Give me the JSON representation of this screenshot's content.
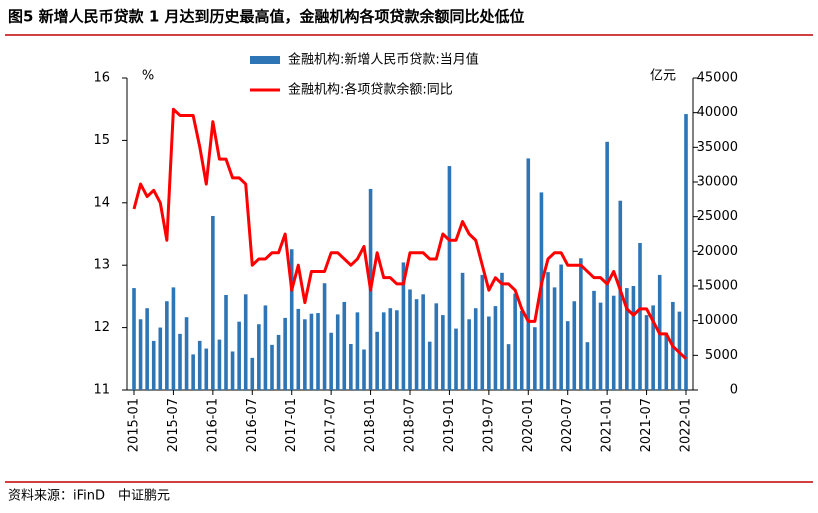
{
  "title": "图5  新增人民币贷款 1 月达到历史最高值，金融机构各项贷款余额同比处低位",
  "source": "资料来源：iFinD　中证鹏元",
  "chart_data": {
    "type": "combo",
    "y_label": "%",
    "y2_label": "亿元",
    "categories": [
      "2015-01",
      null,
      null,
      null,
      null,
      null,
      "2015-07",
      null,
      null,
      null,
      null,
      null,
      "2016-01",
      null,
      null,
      null,
      null,
      null,
      "2016-07",
      null,
      null,
      null,
      null,
      null,
      "2017-01",
      null,
      null,
      null,
      null,
      null,
      "2017-07",
      null,
      null,
      null,
      null,
      null,
      "2018-01",
      null,
      null,
      null,
      null,
      null,
      "2018-07",
      null,
      null,
      null,
      null,
      null,
      "2019-01",
      null,
      null,
      null,
      null,
      null,
      "2019-07",
      null,
      null,
      null,
      null,
      null,
      "2020-01",
      null,
      null,
      null,
      null,
      null,
      "2020-07",
      null,
      null,
      null,
      null,
      null,
      "2021-01",
      null,
      null,
      null,
      null,
      null,
      "2021-07",
      null,
      null,
      null,
      null,
      null,
      "2022-01"
    ],
    "series": [
      {
        "name": "金融机构:新增人民币贷款:当月值",
        "type": "bar",
        "axis": "y2",
        "color": "#2e75b6",
        "values": [
          14700,
          10200,
          11800,
          7079,
          9008,
          12800,
          14800,
          8096,
          10500,
          5136,
          7089,
          5978,
          25100,
          7266,
          13700,
          5556,
          9855,
          13800,
          4636,
          9487,
          12200,
          6513,
          7946,
          10400,
          20300,
          11700,
          10200,
          11000,
          11100,
          15400,
          8255,
          10900,
          12700,
          6632,
          11200,
          5844,
          29000,
          8393,
          11200,
          11800,
          11500,
          18400,
          14500,
          13100,
          13800,
          6970,
          12500,
          10800,
          32300,
          8858,
          16900,
          10200,
          11800,
          16600,
          10600,
          12100,
          16900,
          6613,
          13900,
          11400,
          33400,
          9057,
          28500,
          17000,
          14800,
          18100,
          9927,
          12800,
          19000,
          6898,
          14300,
          12600,
          35800,
          13600,
          27300,
          14700,
          15000,
          21200,
          10800,
          12200,
          16600,
          8262,
          12700,
          11300,
          39800
        ]
      },
      {
        "name": "金融机构:各项贷款余额:同比",
        "type": "line",
        "axis": "y",
        "color": "#ff0000",
        "values": [
          13.9,
          14.3,
          14.1,
          14.2,
          14.0,
          13.4,
          15.5,
          15.4,
          15.4,
          15.4,
          14.9,
          14.3,
          15.3,
          14.7,
          14.7,
          14.4,
          14.4,
          14.3,
          13.0,
          13.1,
          13.1,
          13.2,
          13.2,
          13.5,
          12.6,
          13.0,
          12.4,
          12.9,
          12.9,
          12.9,
          13.2,
          13.2,
          13.1,
          13.0,
          13.1,
          13.3,
          12.6,
          13.2,
          12.8,
          12.8,
          12.7,
          12.7,
          13.2,
          13.2,
          13.2,
          13.1,
          13.1,
          13.5,
          13.4,
          13.4,
          13.7,
          13.5,
          13.4,
          13.0,
          12.6,
          12.8,
          12.7,
          12.7,
          12.6,
          12.3,
          12.1,
          12.1,
          12.7,
          13.1,
          13.2,
          13.2,
          13.0,
          13.0,
          13.0,
          12.9,
          12.8,
          12.8,
          12.7,
          12.9,
          12.6,
          12.3,
          12.2,
          12.3,
          12.3,
          12.1,
          11.9,
          11.9,
          11.7,
          11.6,
          11.5
        ]
      }
    ],
    "ylim": [
      11,
      16
    ],
    "yticks": [
      11,
      12,
      13,
      14,
      15,
      16
    ],
    "y2lim": [
      0,
      45000
    ],
    "y2ticks": [
      0,
      5000,
      10000,
      15000,
      20000,
      25000,
      30000,
      35000,
      40000,
      45000
    ]
  }
}
